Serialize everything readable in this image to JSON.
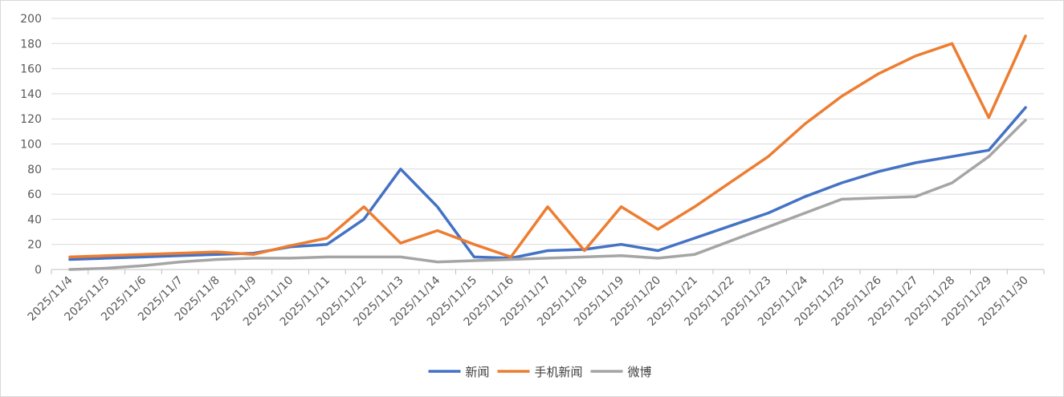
{
  "chart_data": {
    "type": "line",
    "title": "",
    "xlabel": "",
    "ylabel": "",
    "ylim": [
      0,
      200
    ],
    "yticks": [
      0,
      20,
      40,
      60,
      80,
      100,
      120,
      140,
      160,
      180,
      200
    ],
    "grid": true,
    "legend": "bottom",
    "categories": [
      "2025/11/4",
      "2025/11/5",
      "2025/11/6",
      "2025/11/7",
      "2025/11/8",
      "2025/11/9",
      "2025/11/10",
      "2025/11/11",
      "2025/11/12",
      "2025/11/13",
      "2025/11/14",
      "2025/11/15",
      "2025/11/16",
      "2025/11/17",
      "2025/11/18",
      "2025/11/19",
      "2025/11/20",
      "2025/11/21",
      "2025/11/22",
      "2025/11/23",
      "2025/11/24",
      "2025/11/25",
      "2025/11/26",
      "2025/11/27",
      "2025/11/28",
      "2025/11/29",
      "2025/11/30"
    ],
    "series": [
      {
        "name": "新闻",
        "color": "#4472C4",
        "values": [
          8,
          9,
          10,
          11,
          12,
          13,
          18,
          20,
          40,
          80,
          50,
          10,
          9,
          15,
          16,
          20,
          15,
          25,
          35,
          45,
          58,
          69,
          78,
          85,
          90,
          95,
          129
        ]
      },
      {
        "name": "手机新闻",
        "color": "#ED7D31",
        "values": [
          10,
          11,
          12,
          13,
          14,
          12,
          19,
          25,
          50,
          21,
          31,
          20,
          10,
          50,
          15,
          50,
          32,
          50,
          70,
          90,
          116,
          138,
          156,
          170,
          180,
          121,
          186
        ]
      },
      {
        "name": "微博",
        "color": "#A5A5A5",
        "values": [
          0,
          1,
          3,
          6,
          8,
          9,
          9,
          10,
          10,
          10,
          6,
          7,
          8,
          9,
          10,
          11,
          9,
          12,
          23,
          34,
          45,
          56,
          57,
          58,
          69,
          90,
          119
        ]
      }
    ]
  }
}
